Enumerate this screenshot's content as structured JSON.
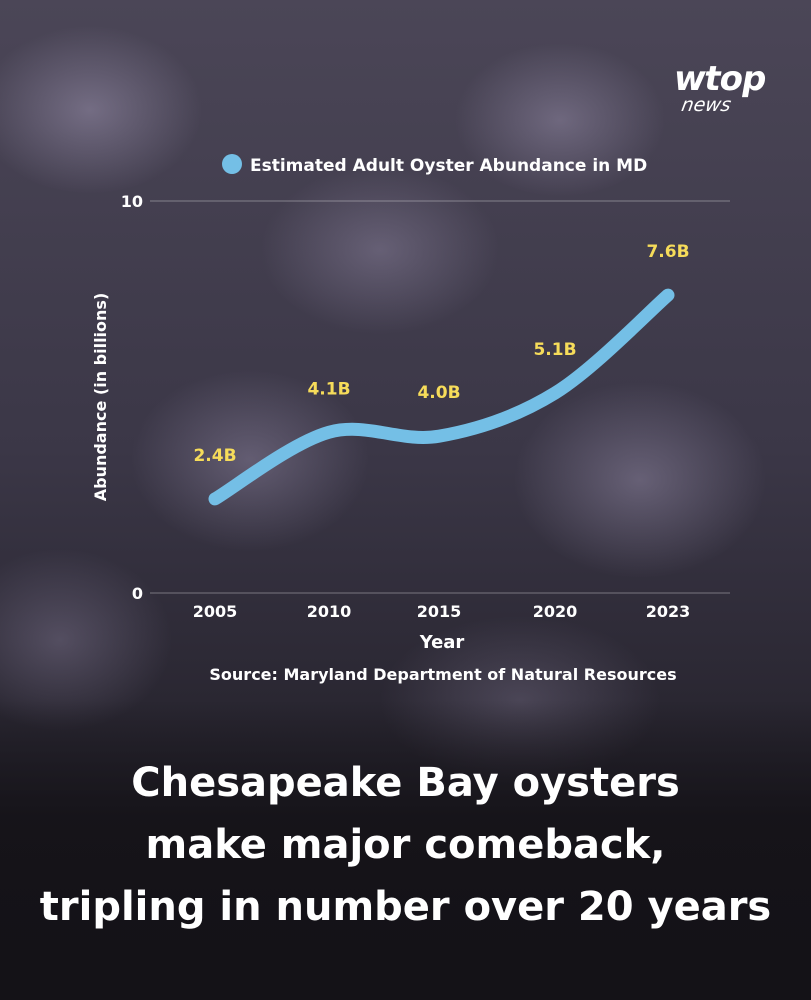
{
  "brand": {
    "name": "wtop",
    "sub": "news"
  },
  "headline": {
    "lines": [
      "Chesapeake Bay oysters",
      "make major comeback,",
      "tripling in number over 20 years"
    ]
  },
  "chart_data": {
    "type": "line",
    "title": "",
    "legend": {
      "label": "Estimated Adult Oyster Abundance in MD",
      "placement": "top-left"
    },
    "xlabel": "Year",
    "ylabel": "Abundance (in billions)",
    "source": "Source: Maryland Department of Natural Resources",
    "ylim": [
      0,
      10
    ],
    "yticks": [
      0,
      10
    ],
    "grid": true,
    "series": [
      {
        "name": "Estimated Adult Oyster Abundance in MD",
        "color": "#74bfe6",
        "x": [
          "2005",
          "2010",
          "2015",
          "2020",
          "2023"
        ],
        "values": [
          2.4,
          4.1,
          4.0,
          5.1,
          7.6
        ],
        "data_labels": [
          "2.4B",
          "4.1B",
          "4.0B",
          "5.1B",
          "7.6B"
        ]
      }
    ],
    "label_color": "#f6dc5a"
  }
}
